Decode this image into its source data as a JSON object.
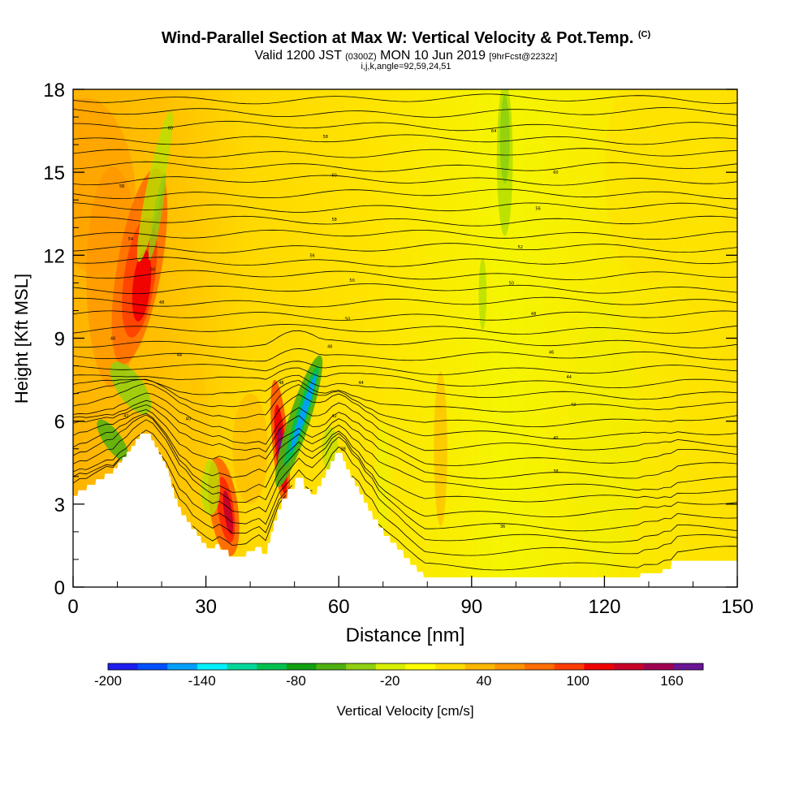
{
  "title": {
    "main": "Wind-Parallel Section at Max W: Vertical Velocity & Pot.Temp.",
    "copyright": "(C)",
    "valid_prefix": "Valid 1200 JST",
    "valid_zulu": "(0300Z)",
    "valid_date": "MON 10 Jun 2019",
    "forecast": "[9hrFcst@2232z]",
    "indices": "i,j,k,angle=92,59,24,51"
  },
  "chart_data": {
    "type": "heatmap",
    "xlabel": "Distance [nm]",
    "ylabel": "Height [Kft MSL]",
    "xlim": [
      0,
      150
    ],
    "ylim": [
      0,
      18
    ],
    "x_ticks": [
      0,
      30,
      60,
      90,
      120,
      150
    ],
    "y_ticks": [
      0,
      3,
      6,
      9,
      12,
      15,
      18
    ],
    "colorbar": {
      "label": "Vertical Velocity [cm/s]",
      "min": -200,
      "max": 180,
      "step": 20,
      "tick_labels": [
        "-200",
        "-140",
        "-80",
        "-20",
        "40",
        "100",
        "160"
      ],
      "colors": [
        "#1e1ef0",
        "#0050ff",
        "#00a0ff",
        "#00f0ff",
        "#00d89a",
        "#00c050",
        "#10a010",
        "#50b010",
        "#90d010",
        "#d8f000",
        "#ffff00",
        "#ffdc00",
        "#ffb800",
        "#ff9400",
        "#ff6c00",
        "#ff3c00",
        "#f00000",
        "#c80028",
        "#a00050",
        "#6a1496"
      ]
    },
    "terrain_kft": [
      [
        0,
        3.3
      ],
      [
        1,
        3.3
      ],
      [
        1.2,
        3.5
      ],
      [
        3,
        3.5
      ],
      [
        3.2,
        3.7
      ],
      [
        5,
        3.7
      ],
      [
        5.2,
        3.9
      ],
      [
        7,
        3.9
      ],
      [
        7.2,
        4.1
      ],
      [
        9,
        4.1
      ],
      [
        9.2,
        4.3
      ],
      [
        10,
        4.3
      ],
      [
        10.2,
        4.5
      ],
      [
        11,
        4.5
      ],
      [
        11.2,
        4.7
      ],
      [
        12,
        4.7
      ],
      [
        12.2,
        4.9
      ],
      [
        13,
        4.9
      ],
      [
        13.2,
        5.1
      ],
      [
        14,
        5.1
      ],
      [
        14.2,
        5.35
      ],
      [
        15,
        5.35
      ],
      [
        15.2,
        5.55
      ],
      [
        17.5,
        5.55
      ],
      [
        17.7,
        5.3
      ],
      [
        18.3,
        5.3
      ],
      [
        18.5,
        5.05
      ],
      [
        19.2,
        5.05
      ],
      [
        19.4,
        4.8
      ],
      [
        20,
        4.8
      ],
      [
        20.2,
        4.55
      ],
      [
        20.8,
        4.55
      ],
      [
        21,
        4.3
      ],
      [
        21.5,
        4.3
      ],
      [
        21.7,
        4.0
      ],
      [
        22,
        4.0
      ],
      [
        22.2,
        3.6
      ],
      [
        22.7,
        3.6
      ],
      [
        22.9,
        3.2
      ],
      [
        23.5,
        3.2
      ],
      [
        23.7,
        2.9
      ],
      [
        24.3,
        2.9
      ],
      [
        24.5,
        2.6
      ],
      [
        25.5,
        2.6
      ],
      [
        25.7,
        2.35
      ],
      [
        26.5,
        2.35
      ],
      [
        26.7,
        2.1
      ],
      [
        27.8,
        2.1
      ],
      [
        28,
        1.85
      ],
      [
        28.8,
        1.85
      ],
      [
        29,
        1.6
      ],
      [
        30,
        1.6
      ],
      [
        30.2,
        1.4
      ],
      [
        32,
        1.4
      ],
      [
        32.2,
        1.55
      ],
      [
        33,
        1.55
      ],
      [
        33.2,
        1.35
      ],
      [
        35,
        1.35
      ],
      [
        35.2,
        1.1
      ],
      [
        39,
        1.1
      ],
      [
        39.2,
        1.3
      ],
      [
        41,
        1.3
      ],
      [
        41.2,
        1.45
      ],
      [
        42.5,
        1.45
      ],
      [
        42.7,
        1.2
      ],
      [
        43.8,
        1.2
      ],
      [
        44,
        1.6
      ],
      [
        44.5,
        1.6
      ],
      [
        44.7,
        2.0
      ],
      [
        45.2,
        2.0
      ],
      [
        45.4,
        2.4
      ],
      [
        46,
        2.4
      ],
      [
        46.2,
        2.8
      ],
      [
        47,
        2.8
      ],
      [
        47.2,
        3.2
      ],
      [
        48.3,
        3.2
      ],
      [
        48.5,
        3.55
      ],
      [
        50,
        3.55
      ],
      [
        50.2,
        3.95
      ],
      [
        52,
        3.95
      ],
      [
        52.2,
        3.55
      ],
      [
        53.5,
        3.55
      ],
      [
        53.7,
        3.35
      ],
      [
        55,
        3.35
      ],
      [
        55.2,
        3.65
      ],
      [
        56,
        3.65
      ],
      [
        56.2,
        3.95
      ],
      [
        57,
        3.95
      ],
      [
        57.2,
        4.25
      ],
      [
        58,
        4.25
      ],
      [
        58.2,
        4.55
      ],
      [
        59,
        4.55
      ],
      [
        59.2,
        4.85
      ],
      [
        60.8,
        4.85
      ],
      [
        61,
        4.55
      ],
      [
        61.5,
        4.55
      ],
      [
        61.7,
        4.25
      ],
      [
        62.5,
        4.25
      ],
      [
        62.7,
        3.95
      ],
      [
        63.5,
        3.95
      ],
      [
        63.7,
        3.65
      ],
      [
        64.5,
        3.65
      ],
      [
        64.7,
        3.35
      ],
      [
        65.5,
        3.35
      ],
      [
        65.7,
        3.05
      ],
      [
        66.5,
        3.05
      ],
      [
        66.7,
        2.75
      ],
      [
        67.5,
        2.75
      ],
      [
        67.7,
        2.45
      ],
      [
        68.8,
        2.45
      ],
      [
        69,
        2.15
      ],
      [
        70,
        2.15
      ],
      [
        70.2,
        1.85
      ],
      [
        71.5,
        1.85
      ],
      [
        71.7,
        1.6
      ],
      [
        73,
        1.6
      ],
      [
        73.2,
        1.35
      ],
      [
        74.5,
        1.35
      ],
      [
        74.7,
        1.05
      ],
      [
        76,
        1.05
      ],
      [
        76.2,
        0.8
      ],
      [
        77.5,
        0.8
      ],
      [
        77.7,
        0.55
      ],
      [
        79,
        0.55
      ],
      [
        79.2,
        0.35
      ],
      [
        128,
        0.35
      ],
      [
        128.2,
        0.5
      ],
      [
        133,
        0.5
      ],
      [
        133.2,
        0.65
      ],
      [
        135,
        0.65
      ],
      [
        135.2,
        0.95
      ],
      [
        150,
        0.95
      ]
    ],
    "theta_contour_labels": [
      {
        "x": 22,
        "y": 16.6,
        "label": "60"
      },
      {
        "x": 57,
        "y": 16.3,
        "label": "58"
      },
      {
        "x": 95,
        "y": 16.5,
        "label": "64"
      },
      {
        "x": 11,
        "y": 14.5,
        "label": "58"
      },
      {
        "x": 59,
        "y": 14.9,
        "label": "60"
      },
      {
        "x": 109,
        "y": 15.0,
        "label": "60"
      },
      {
        "x": 59,
        "y": 13.3,
        "label": "58"
      },
      {
        "x": 105,
        "y": 13.7,
        "label": "56"
      },
      {
        "x": 13,
        "y": 12.6,
        "label": "54"
      },
      {
        "x": 54,
        "y": 12.0,
        "label": "56"
      },
      {
        "x": 101,
        "y": 12.3,
        "label": "52"
      },
      {
        "x": 18,
        "y": 11.5,
        "label": "50"
      },
      {
        "x": 63,
        "y": 11.1,
        "label": "50"
      },
      {
        "x": 99,
        "y": 11.0,
        "label": "50"
      },
      {
        "x": 20,
        "y": 10.3,
        "label": "48"
      },
      {
        "x": 62,
        "y": 9.7,
        "label": "50"
      },
      {
        "x": 104,
        "y": 9.9,
        "label": "48"
      },
      {
        "x": 9,
        "y": 9.0,
        "label": "46"
      },
      {
        "x": 24,
        "y": 8.4,
        "label": "44"
      },
      {
        "x": 58,
        "y": 8.7,
        "label": "46"
      },
      {
        "x": 108,
        "y": 8.5,
        "label": "46"
      },
      {
        "x": 47,
        "y": 7.4,
        "label": "48"
      },
      {
        "x": 65,
        "y": 7.4,
        "label": "44"
      },
      {
        "x": 112,
        "y": 7.6,
        "label": "44"
      },
      {
        "x": 12,
        "y": 6.2,
        "label": "42"
      },
      {
        "x": 26,
        "y": 6.1,
        "label": "40"
      },
      {
        "x": 59,
        "y": 6.2,
        "label": "42"
      },
      {
        "x": 113,
        "y": 6.6,
        "label": "42"
      },
      {
        "x": 109,
        "y": 5.4,
        "label": "40"
      },
      {
        "x": 61,
        "y": 5.0,
        "label": "38"
      },
      {
        "x": 109,
        "y": 4.2,
        "label": "38"
      },
      {
        "x": 97,
        "y": 2.2,
        "label": "36"
      }
    ]
  }
}
